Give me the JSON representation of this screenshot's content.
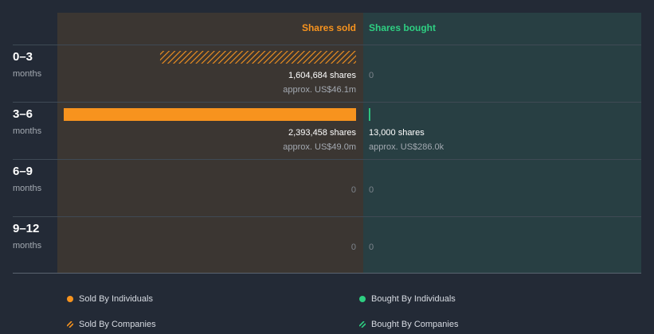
{
  "colors": {
    "background": "#232a36",
    "sold_panel": "#3b3632",
    "bought_panel": "#283f43",
    "sold": "#f7931e",
    "bought": "#2ecf82",
    "divider": "#3f4a55",
    "text": "#ffffff",
    "subtext": "#a3a9b1"
  },
  "chart_data": {
    "type": "bar",
    "headers": {
      "sold": "Shares sold",
      "bought": "Shares bought"
    },
    "categories": [
      {
        "range": "0–3",
        "unit": "months"
      },
      {
        "range": "3–6",
        "unit": "months"
      },
      {
        "range": "6–9",
        "unit": "months"
      },
      {
        "range": "9–12",
        "unit": "months"
      }
    ],
    "sold": [
      {
        "shares": 1604684,
        "shares_label": "1,604,684 shares",
        "value_label": "approx. US$46.1m",
        "source": "companies"
      },
      {
        "shares": 2393458,
        "shares_label": "2,393,458 shares",
        "value_label": "approx. US$49.0m",
        "source": "individuals"
      },
      {
        "shares": 0,
        "shares_label": "0",
        "value_label": "",
        "source": ""
      },
      {
        "shares": 0,
        "shares_label": "0",
        "value_label": "",
        "source": ""
      }
    ],
    "bought": [
      {
        "shares": 0,
        "shares_label": "0",
        "value_label": "",
        "source": ""
      },
      {
        "shares": 13000,
        "shares_label": "13,000 shares",
        "value_label": "approx. US$286.0k",
        "source": "individuals"
      },
      {
        "shares": 0,
        "shares_label": "0",
        "value_label": "",
        "source": ""
      },
      {
        "shares": 0,
        "shares_label": "0",
        "value_label": "",
        "source": ""
      }
    ],
    "legend": [
      {
        "label": "Sold By Individuals",
        "side": "sold",
        "style": "solid"
      },
      {
        "label": "Bought By Individuals",
        "side": "bought",
        "style": "solid"
      },
      {
        "label": "Sold By Companies",
        "side": "sold",
        "style": "hatched"
      },
      {
        "label": "Bought By Companies",
        "side": "bought",
        "style": "hatched"
      }
    ]
  }
}
